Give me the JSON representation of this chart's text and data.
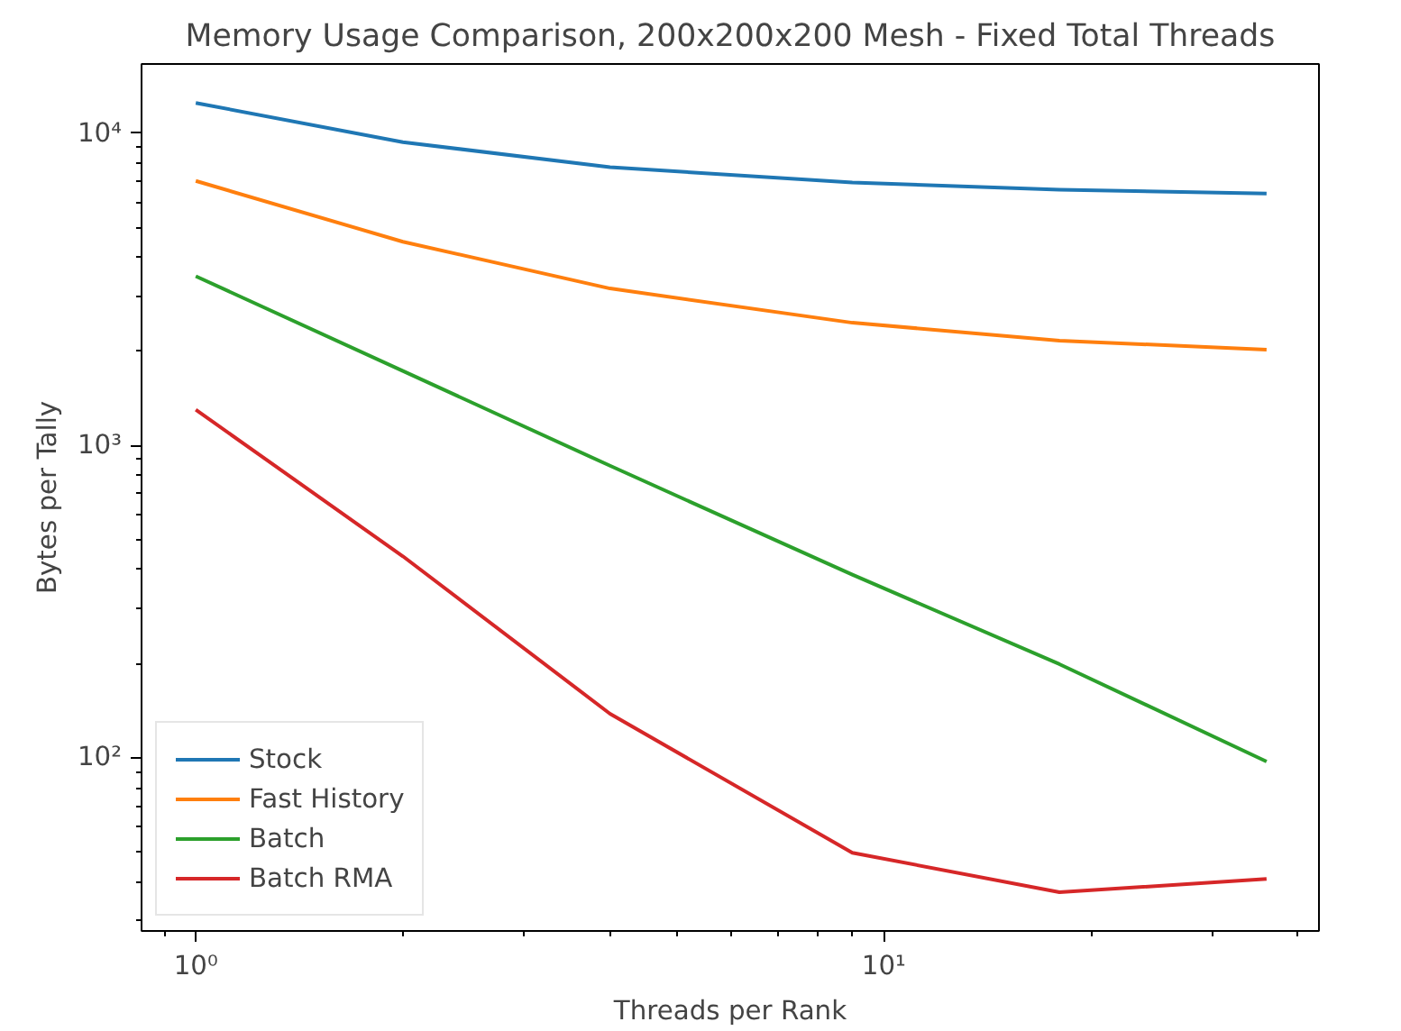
{
  "chart_data": {
    "type": "line",
    "title": "Memory Usage Comparison, 200x200x200 Mesh - Fixed Total Threads",
    "xlabel": "Threads per Rank",
    "ylabel": "Bytes per Tally",
    "x": [
      1,
      2,
      4,
      9,
      18,
      36
    ],
    "series": [
      {
        "name": "Stock",
        "color": "#1f77b4",
        "values": [
          12500,
          9360,
          7780,
          6950,
          6590,
          6410
        ]
      },
      {
        "name": "Fast History",
        "color": "#ff7f0e",
        "values": [
          7030,
          4490,
          3180,
          2470,
          2165,
          2026
        ]
      },
      {
        "name": "Batch",
        "color": "#2ca02c",
        "values": [
          3480,
          1730,
          860,
          385,
          199,
          97
        ]
      },
      {
        "name": "Batch RMA",
        "color": "#d62728",
        "values": [
          1300,
          441,
          138,
          49.5,
          37,
          40.8
        ]
      }
    ],
    "log": "xy",
    "xlim": [
      0.834,
      42.9
    ],
    "ylim": [
      27.8,
      16660
    ],
    "xticks": [
      {
        "value": 1,
        "label": "10⁰"
      },
      {
        "value": 10,
        "label": "10¹"
      },
      {
        "value": 0.9,
        "label": null
      },
      {
        "value": 2,
        "label": null
      },
      {
        "value": 3,
        "label": null
      },
      {
        "value": 4,
        "label": null
      },
      {
        "value": 5,
        "label": null
      },
      {
        "value": 6,
        "label": null
      },
      {
        "value": 7,
        "label": null
      },
      {
        "value": 8,
        "label": null
      },
      {
        "value": 9,
        "label": null
      },
      {
        "value": 20,
        "label": null
      },
      {
        "value": 30,
        "label": null
      },
      {
        "value": 40,
        "label": null
      }
    ],
    "yticks": [
      {
        "value": 100,
        "label": "10²"
      },
      {
        "value": 1000,
        "label": "10³"
      },
      {
        "value": 10000,
        "label": "10⁴"
      },
      {
        "value": 30,
        "label": null
      },
      {
        "value": 40,
        "label": null
      },
      {
        "value": 50,
        "label": null
      },
      {
        "value": 60,
        "label": null
      },
      {
        "value": 70,
        "label": null
      },
      {
        "value": 80,
        "label": null
      },
      {
        "value": 90,
        "label": null
      },
      {
        "value": 200,
        "label": null
      },
      {
        "value": 300,
        "label": null
      },
      {
        "value": 400,
        "label": null
      },
      {
        "value": 500,
        "label": null
      },
      {
        "value": 600,
        "label": null
      },
      {
        "value": 700,
        "label": null
      },
      {
        "value": 800,
        "label": null
      },
      {
        "value": 900,
        "label": null
      },
      {
        "value": 2000,
        "label": null
      },
      {
        "value": 3000,
        "label": null
      },
      {
        "value": 4000,
        "label": null
      },
      {
        "value": 5000,
        "label": null
      },
      {
        "value": 6000,
        "label": null
      },
      {
        "value": 7000,
        "label": null
      },
      {
        "value": 8000,
        "label": null
      },
      {
        "value": 9000,
        "label": null
      }
    ],
    "grid": false,
    "legend": "bottom left",
    "line_style": "solid"
  }
}
